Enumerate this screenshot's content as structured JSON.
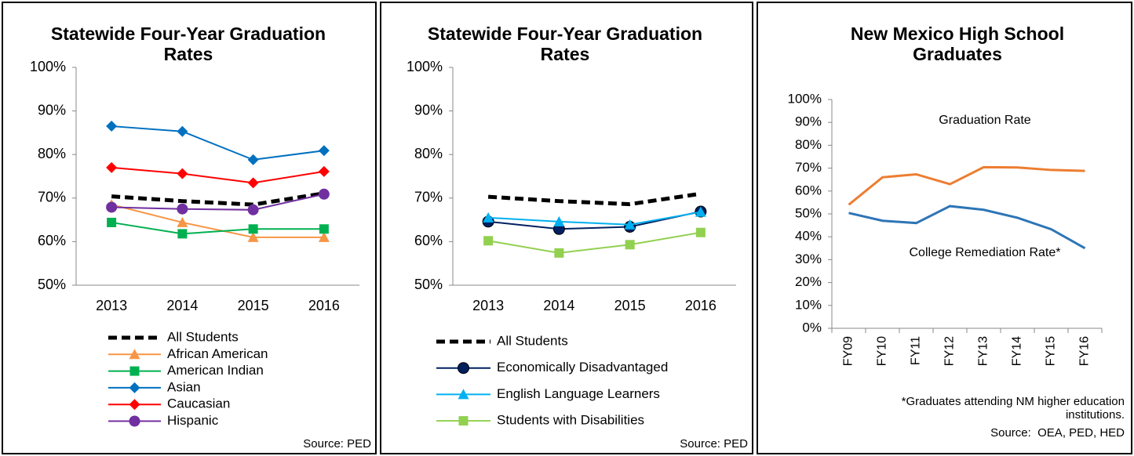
{
  "chart_data": [
    {
      "type": "line",
      "title": "Statewide Four-Year Graduation Rates",
      "categories": [
        "2013",
        "2014",
        "2015",
        "2016"
      ],
      "ylim": [
        50,
        100
      ],
      "yticks": [
        {
          "value": 50,
          "label": "50%"
        },
        {
          "value": 60,
          "label": "60%"
        },
        {
          "value": 70,
          "label": "70%"
        },
        {
          "value": 80,
          "label": "80%"
        },
        {
          "value": 90,
          "label": "90%"
        },
        {
          "value": 100,
          "label": "100%"
        }
      ],
      "series": [
        {
          "name": "All Students",
          "color": "#000000",
          "dash": true,
          "marker": "none",
          "values": [
            70.4,
            69.3,
            68.5,
            71.1
          ]
        },
        {
          "name": "African American",
          "color": "#f79646",
          "marker": "triangle",
          "values": [
            68.5,
            64.4,
            61,
            61
          ]
        },
        {
          "name": "American Indian",
          "color": "#00b050",
          "marker": "square",
          "values": [
            64.4,
            61.8,
            62.9,
            62.9
          ]
        },
        {
          "name": "Asian",
          "color": "#0070c0",
          "marker": "diamond",
          "values": [
            86.5,
            85.3,
            78.8,
            80.9
          ]
        },
        {
          "name": "Caucasian",
          "color": "#ff0000",
          "marker": "diamond",
          "values": [
            77,
            75.6,
            73.5,
            76.1
          ]
        },
        {
          "name": "Hispanic",
          "color": "#7030a0",
          "marker": "circle",
          "values": [
            67.9,
            67.5,
            67.3,
            70.9
          ]
        }
      ],
      "source": "Source: PED"
    },
    {
      "type": "line",
      "title": "Statewide Four-Year Graduation Rates",
      "categories": [
        "2013",
        "2014",
        "2015",
        "2016"
      ],
      "ylim": [
        50,
        100
      ],
      "yticks": [
        {
          "value": 50,
          "label": "50%"
        },
        {
          "value": 60,
          "label": "60%"
        },
        {
          "value": 70,
          "label": "70%"
        },
        {
          "value": 80,
          "label": "80%"
        },
        {
          "value": 90,
          "label": "90%"
        },
        {
          "value": 100,
          "label": "100%"
        }
      ],
      "series": [
        {
          "name": "All Students",
          "color": "#000000",
          "dash": true,
          "marker": "none",
          "values": [
            70.3,
            69.3,
            68.6,
            71.0
          ]
        },
        {
          "name": "Economically Disadvantaged",
          "color": "#002060",
          "marker": "circle",
          "values": [
            64.6,
            62.9,
            63.4,
            66.9
          ]
        },
        {
          "name": "English Language Learners",
          "color": "#00b0f0",
          "marker": "triangle",
          "values": [
            65.5,
            64.6,
            63.9,
            66.8
          ]
        },
        {
          "name": "Students with Disabilities",
          "color": "#92d050",
          "marker": "square",
          "values": [
            60.2,
            57.4,
            59.3,
            62.1
          ]
        }
      ],
      "source": "Source: PED"
    },
    {
      "type": "line",
      "title": "New Mexico High School Graduates",
      "categories": [
        "FY09",
        "FY10",
        "FY11",
        "FY12",
        "FY13",
        "FY14",
        "FY15",
        "FY16"
      ],
      "ylim": [
        0,
        100
      ],
      "yticks": [
        {
          "value": 0,
          "label": "0%"
        },
        {
          "value": 10,
          "label": "10%"
        },
        {
          "value": 20,
          "label": "20%"
        },
        {
          "value": 30,
          "label": "30%"
        },
        {
          "value": 40,
          "label": "40%"
        },
        {
          "value": 50,
          "label": "50%"
        },
        {
          "value": 60,
          "label": "60%"
        },
        {
          "value": 70,
          "label": "70%"
        },
        {
          "value": 80,
          "label": "80%"
        },
        {
          "value": 90,
          "label": "90%"
        },
        {
          "value": 100,
          "label": "100%"
        }
      ],
      "series": [
        {
          "name": "Graduation Rate",
          "color": "#ed7d31",
          "marker": "none",
          "values": [
            54,
            66,
            67.3,
            63,
            70.4,
            70.3,
            69.2,
            68.8
          ]
        },
        {
          "name": "College Remediation Rate*",
          "color": "#2e75b6",
          "marker": "none",
          "values": [
            50.4,
            47,
            46,
            53.4,
            51.8,
            48.3,
            43.3,
            35
          ]
        }
      ],
      "note": "*Graduates attending NM higher education institutions.",
      "source": "Source:  OEA, PED, HED"
    }
  ]
}
